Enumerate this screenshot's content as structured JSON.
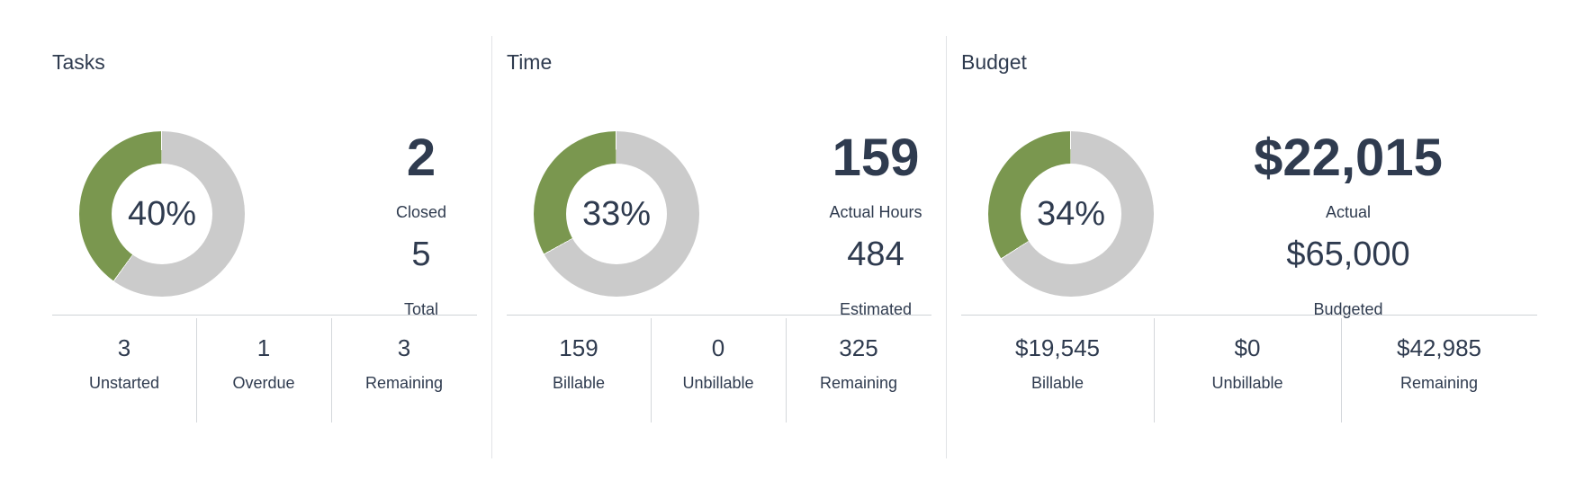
{
  "colors": {
    "progress": "#7a974f",
    "track": "#cbcbcb",
    "text": "#2f3b4f",
    "divider": "#e1e3e6"
  },
  "panels": [
    {
      "title": "Tasks",
      "percent_value": 40,
      "percent_label": "40%",
      "primary_value": "2",
      "primary_label": "Closed",
      "secondary_value": "5",
      "secondary_label": "Total",
      "footer": [
        {
          "value": "3",
          "label": "Unstarted"
        },
        {
          "value": "1",
          "label": "Overdue"
        },
        {
          "value": "3",
          "label": "Remaining"
        }
      ]
    },
    {
      "title": "Time",
      "percent_value": 33,
      "percent_label": "33%",
      "primary_value": "159",
      "primary_label": "Actual Hours",
      "secondary_value": "484",
      "secondary_label": "Estimated",
      "footer": [
        {
          "value": "159",
          "label": "Billable"
        },
        {
          "value": "0",
          "label": "Unbillable"
        },
        {
          "value": "325",
          "label": "Remaining"
        }
      ]
    },
    {
      "title": "Budget",
      "percent_value": 34,
      "percent_label": "34%",
      "primary_value": "$22,015",
      "primary_label": "Actual",
      "secondary_value": "$65,000",
      "secondary_label": "Budgeted",
      "footer": [
        {
          "value": "$19,545",
          "label": "Billable"
        },
        {
          "value": "$0",
          "label": "Unbillable"
        },
        {
          "value": "$42,985",
          "label": "Remaining"
        }
      ]
    }
  ]
}
